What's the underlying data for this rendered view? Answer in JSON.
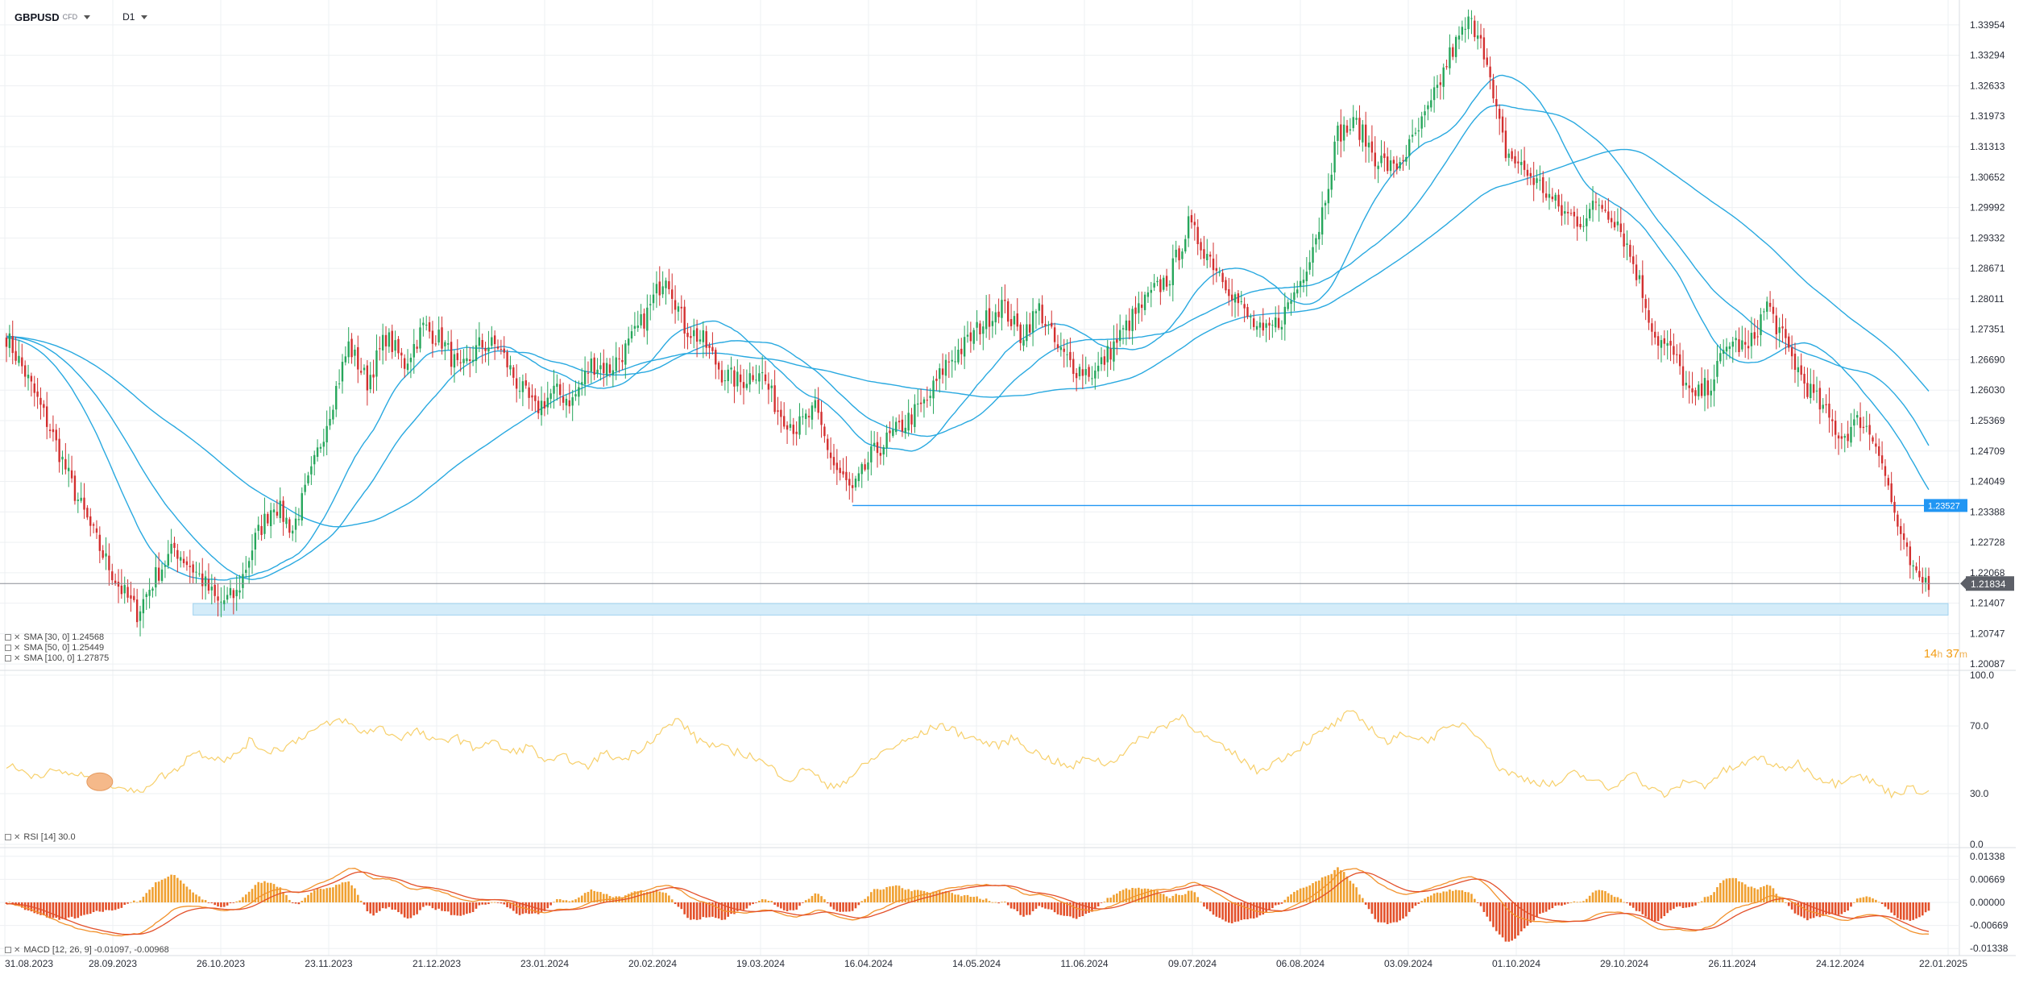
{
  "header": {
    "symbol": "GBPUSD",
    "symbol_type": "CFD",
    "timeframe": "D1"
  },
  "colors": {
    "bull": "#26a65b",
    "bear": "#d32f2f",
    "sma": "#29a9e0",
    "rsi": "#f7d06b",
    "macd_line": "#f2922c",
    "signal_line": "#e3502a",
    "hist_pos": "#f0a030",
    "hist_neg": "#e3502a",
    "price_tag": "#2196f3",
    "current_tag": "#5d6068",
    "zone": "#d4ecf9"
  },
  "indicators": {
    "sma30": "SMA [30, 0] 1.24568",
    "sma50": "SMA [50, 0] 1.25449",
    "sma100": "SMA [100, 0] 1.27875",
    "rsi": "RSI [14] 30.0",
    "macd": "MACD [12, 26, 9] -0.01097, -0.00968"
  },
  "timer": {
    "hours": "14",
    "h_unit": "h",
    "minutes": "37",
    "m_unit": "m"
  },
  "chart_data": {
    "type": "candlestick",
    "instrument": "GBPUSD",
    "timeframe": "D1",
    "x_labels": [
      "31.08.2023",
      "28.09.2023",
      "26.10.2023",
      "23.11.2023",
      "21.12.2023",
      "23.01.2024",
      "20.02.2024",
      "19.03.2024",
      "16.04.2024",
      "14.05.2024",
      "11.06.2024",
      "09.07.2024",
      "06.08.2024",
      "03.09.2024",
      "01.10.2024",
      "29.10.2024",
      "26.11.2024",
      "24.12.2024",
      "22.01.2025"
    ],
    "price_axis": {
      "ticks": [
        "1.33954",
        "1.33294",
        "1.32633",
        "1.31973",
        "1.31313",
        "1.30652",
        "1.29992",
        "1.29332",
        "1.28671",
        "1.28011",
        "1.27351",
        "1.26690",
        "1.26030",
        "1.25369",
        "1.24709",
        "1.24049",
        "1.23388",
        "1.22728",
        "1.22068",
        "1.21407",
        "1.20747",
        "1.20087"
      ],
      "range": [
        1.2002,
        1.3418
      ]
    },
    "anchor_closes": [
      [
        0,
        1.272
      ],
      [
        6,
        1.264
      ],
      [
        14,
        1.252
      ],
      [
        22,
        1.238
      ],
      [
        30,
        1.226
      ],
      [
        36,
        1.218
      ],
      [
        42,
        1.212
      ],
      [
        48,
        1.22
      ],
      [
        54,
        1.226
      ],
      [
        62,
        1.22
      ],
      [
        68,
        1.214
      ],
      [
        74,
        1.216
      ],
      [
        80,
        1.228
      ],
      [
        86,
        1.236
      ],
      [
        92,
        1.23
      ],
      [
        98,
        1.242
      ],
      [
        104,
        1.256
      ],
      [
        110,
        1.27
      ],
      [
        116,
        1.262
      ],
      [
        122,
        1.272
      ],
      [
        128,
        1.266
      ],
      [
        134,
        1.274
      ],
      [
        140,
        1.271
      ],
      [
        146,
        1.264
      ],
      [
        152,
        1.27
      ],
      [
        158,
        1.27
      ],
      [
        164,
        1.262
      ],
      [
        170,
        1.256
      ],
      [
        176,
        1.26
      ],
      [
        182,
        1.258
      ],
      [
        188,
        1.266
      ],
      [
        194,
        1.265
      ],
      [
        200,
        1.27
      ],
      [
        206,
        1.277
      ],
      [
        212,
        1.286
      ],
      [
        218,
        1.274
      ],
      [
        224,
        1.271
      ],
      [
        230,
        1.264
      ],
      [
        236,
        1.262
      ],
      [
        242,
        1.265
      ],
      [
        248,
        1.256
      ],
      [
        254,
        1.252
      ],
      [
        260,
        1.256
      ],
      [
        266,
        1.244
      ],
      [
        272,
        1.238
      ],
      [
        278,
        1.246
      ],
      [
        284,
        1.25
      ],
      [
        290,
        1.254
      ],
      [
        296,
        1.258
      ],
      [
        302,
        1.266
      ],
      [
        308,
        1.27
      ],
      [
        314,
        1.275
      ],
      [
        320,
        1.279
      ],
      [
        326,
        1.272
      ],
      [
        332,
        1.278
      ],
      [
        338,
        1.269
      ],
      [
        344,
        1.265
      ],
      [
        350,
        1.264
      ],
      [
        356,
        1.27
      ],
      [
        362,
        1.276
      ],
      [
        368,
        1.281
      ],
      [
        374,
        1.285
      ],
      [
        380,
        1.296
      ],
      [
        386,
        1.29
      ],
      [
        392,
        1.284
      ],
      [
        398,
        1.277
      ],
      [
        404,
        1.272
      ],
      [
        410,
        1.276
      ],
      [
        416,
        1.284
      ],
      [
        422,
        1.296
      ],
      [
        428,
        1.316
      ],
      [
        434,
        1.318
      ],
      [
        440,
        1.311
      ],
      [
        446,
        1.308
      ],
      [
        452,
        1.314
      ],
      [
        458,
        1.322
      ],
      [
        464,
        1.333
      ],
      [
        470,
        1.34
      ],
      [
        474,
        1.338
      ],
      [
        478,
        1.323
      ],
      [
        482,
        1.312
      ],
      [
        488,
        1.308
      ],
      [
        494,
        1.304
      ],
      [
        500,
        1.299
      ],
      [
        506,
        1.297
      ],
      [
        512,
        1.301
      ],
      [
        518,
        1.297
      ],
      [
        524,
        1.286
      ],
      [
        530,
        1.272
      ],
      [
        536,
        1.268
      ],
      [
        542,
        1.258
      ],
      [
        548,
        1.262
      ],
      [
        554,
        1.271
      ],
      [
        560,
        1.269
      ],
      [
        566,
        1.279
      ],
      [
        572,
        1.27
      ],
      [
        578,
        1.262
      ],
      [
        584,
        1.256
      ],
      [
        590,
        1.25
      ],
      [
        596,
        1.254
      ],
      [
        602,
        1.248
      ],
      [
        606,
        1.236
      ],
      [
        610,
        1.226
      ],
      [
        614,
        1.219
      ],
      [
        618,
        1.219
      ]
    ],
    "horizontal_line": {
      "price": 1.23527,
      "label": "1.23527"
    },
    "current_price": {
      "price": 1.21834,
      "label": "1.21834"
    },
    "support_zone": [
      1.2115,
      1.214
    ],
    "rsi_pane": {
      "ticks": [
        "100.0",
        "70.0",
        "30.0",
        "0.0"
      ],
      "range": [
        0,
        100
      ],
      "anchor_values": [
        [
          0,
          47
        ],
        [
          8,
          41
        ],
        [
          16,
          43
        ],
        [
          24,
          41
        ],
        [
          30,
          37
        ],
        [
          36,
          35
        ],
        [
          42,
          30
        ],
        [
          48,
          39
        ],
        [
          54,
          43
        ],
        [
          60,
          55
        ],
        [
          66,
          52
        ],
        [
          72,
          50
        ],
        [
          78,
          61
        ],
        [
          84,
          55
        ],
        [
          90,
          58
        ],
        [
          96,
          65
        ],
        [
          102,
          70
        ],
        [
          108,
          74
        ],
        [
          114,
          66
        ],
        [
          120,
          69
        ],
        [
          126,
          63
        ],
        [
          132,
          67
        ],
        [
          138,
          60
        ],
        [
          144,
          64
        ],
        [
          150,
          57
        ],
        [
          156,
          61
        ],
        [
          162,
          54
        ],
        [
          168,
          58
        ],
        [
          174,
          48
        ],
        [
          180,
          52
        ],
        [
          186,
          45
        ],
        [
          192,
          54
        ],
        [
          198,
          50
        ],
        [
          204,
          57
        ],
        [
          210,
          66
        ],
        [
          216,
          74
        ],
        [
          222,
          62
        ],
        [
          228,
          58
        ],
        [
          234,
          55
        ],
        [
          240,
          52
        ],
        [
          246,
          45
        ],
        [
          252,
          38
        ],
        [
          258,
          46
        ],
        [
          264,
          33
        ],
        [
          270,
          38
        ],
        [
          276,
          47
        ],
        [
          282,
          55
        ],
        [
          288,
          60
        ],
        [
          294,
          65
        ],
        [
          300,
          71
        ],
        [
          306,
          66
        ],
        [
          312,
          62
        ],
        [
          318,
          58
        ],
        [
          324,
          63
        ],
        [
          330,
          55
        ],
        [
          336,
          50
        ],
        [
          342,
          45
        ],
        [
          348,
          52
        ],
        [
          354,
          47
        ],
        [
          360,
          56
        ],
        [
          366,
          64
        ],
        [
          372,
          70
        ],
        [
          378,
          76
        ],
        [
          384,
          65
        ],
        [
          390,
          58
        ],
        [
          396,
          52
        ],
        [
          402,
          43
        ],
        [
          408,
          49
        ],
        [
          414,
          55
        ],
        [
          420,
          63
        ],
        [
          426,
          70
        ],
        [
          432,
          78
        ],
        [
          438,
          70
        ],
        [
          444,
          60
        ],
        [
          450,
          66
        ],
        [
          456,
          61
        ],
        [
          462,
          67
        ],
        [
          468,
          72
        ],
        [
          474,
          64
        ],
        [
          480,
          45
        ],
        [
          486,
          40
        ],
        [
          492,
          37
        ],
        [
          498,
          35
        ],
        [
          504,
          42
        ],
        [
          510,
          38
        ],
        [
          516,
          32
        ],
        [
          522,
          44
        ],
        [
          528,
          33
        ],
        [
          534,
          29
        ],
        [
          540,
          38
        ],
        [
          546,
          35
        ],
        [
          552,
          43
        ],
        [
          558,
          47
        ],
        [
          564,
          52
        ],
        [
          570,
          44
        ],
        [
          576,
          48
        ],
        [
          582,
          40
        ],
        [
          588,
          36
        ],
        [
          594,
          42
        ],
        [
          600,
          37
        ],
        [
          606,
          30
        ],
        [
          612,
          33
        ],
        [
          618,
          31
        ]
      ]
    },
    "macd_pane": {
      "ticks": [
        "0.01338",
        "0.00669",
        "0.00000",
        "-0.00669",
        "-0.01338"
      ],
      "range": [
        -0.0145,
        0.0145
      ]
    }
  }
}
